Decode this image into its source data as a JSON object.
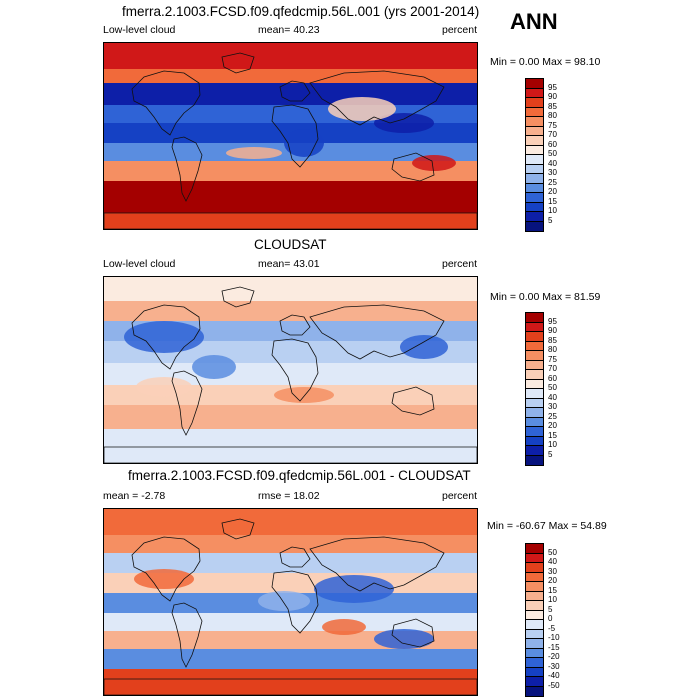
{
  "season": "ANN",
  "panels": [
    {
      "title": "fmerra.2.1003.FCSD.f09.qfedcmip.56L.001 (yrs 2001-2014)",
      "left_label": "Low-level cloud",
      "center_label": "mean=  40.23",
      "right_label": "percent",
      "minmax": "Min =   0.00 Max =  98.10",
      "colorbar_levels": [
        "95",
        "90",
        "85",
        "80",
        "75",
        "70",
        "60",
        "50",
        "40",
        "30",
        "25",
        "20",
        "15",
        "10",
        "5"
      ],
      "colorbar_colors": [
        "#a40000",
        "#d01818",
        "#e2401c",
        "#f16a3a",
        "#f58f62",
        "#f7b08e",
        "#fad0b8",
        "#fbebe0",
        "#dfe9f8",
        "#b9d0f2",
        "#8fb2ea",
        "#5a8de0",
        "#2f63d6",
        "#1541c4",
        "#0d1fa8",
        "#07137e"
      ],
      "map_style": "model"
    },
    {
      "title": "CLOUDSAT",
      "left_label": "Low-level cloud",
      "center_label": "mean=  43.01",
      "right_label": "percent",
      "minmax": "Min =   0.00 Max =  81.59",
      "colorbar_levels": [
        "95",
        "90",
        "85",
        "80",
        "75",
        "70",
        "60",
        "50",
        "40",
        "30",
        "25",
        "20",
        "15",
        "10",
        "5"
      ],
      "colorbar_colors": [
        "#a40000",
        "#d01818",
        "#e2401c",
        "#f16a3a",
        "#f58f62",
        "#f7b08e",
        "#fad0b8",
        "#fbebe0",
        "#dfe9f8",
        "#b9d0f2",
        "#8fb2ea",
        "#5a8de0",
        "#2f63d6",
        "#1541c4",
        "#0d1fa8",
        "#07137e"
      ],
      "map_style": "obs"
    },
    {
      "title": "fmerra.2.1003.FCSD.f09.qfedcmip.56L.001 - CLOUDSAT",
      "left_label": "mean =  -2.78",
      "center_label": "rmse =  18.02",
      "right_label": "percent",
      "minmax": "Min = -60.67 Max =  54.89",
      "colorbar_levels": [
        "50",
        "40",
        "30",
        "20",
        "15",
        "10",
        "5",
        "0",
        "-5",
        "-10",
        "-15",
        "-20",
        "-30",
        "-40",
        "-50"
      ],
      "colorbar_colors": [
        "#a40000",
        "#d01818",
        "#e2401c",
        "#f16a3a",
        "#f58f62",
        "#f7b08e",
        "#fad0b8",
        "#fbebe0",
        "#dfe9f8",
        "#b9d0f2",
        "#8fb2ea",
        "#5a8de0",
        "#2f63d6",
        "#1541c4",
        "#0d1fa8",
        "#07137e"
      ],
      "map_style": "diff"
    }
  ]
}
